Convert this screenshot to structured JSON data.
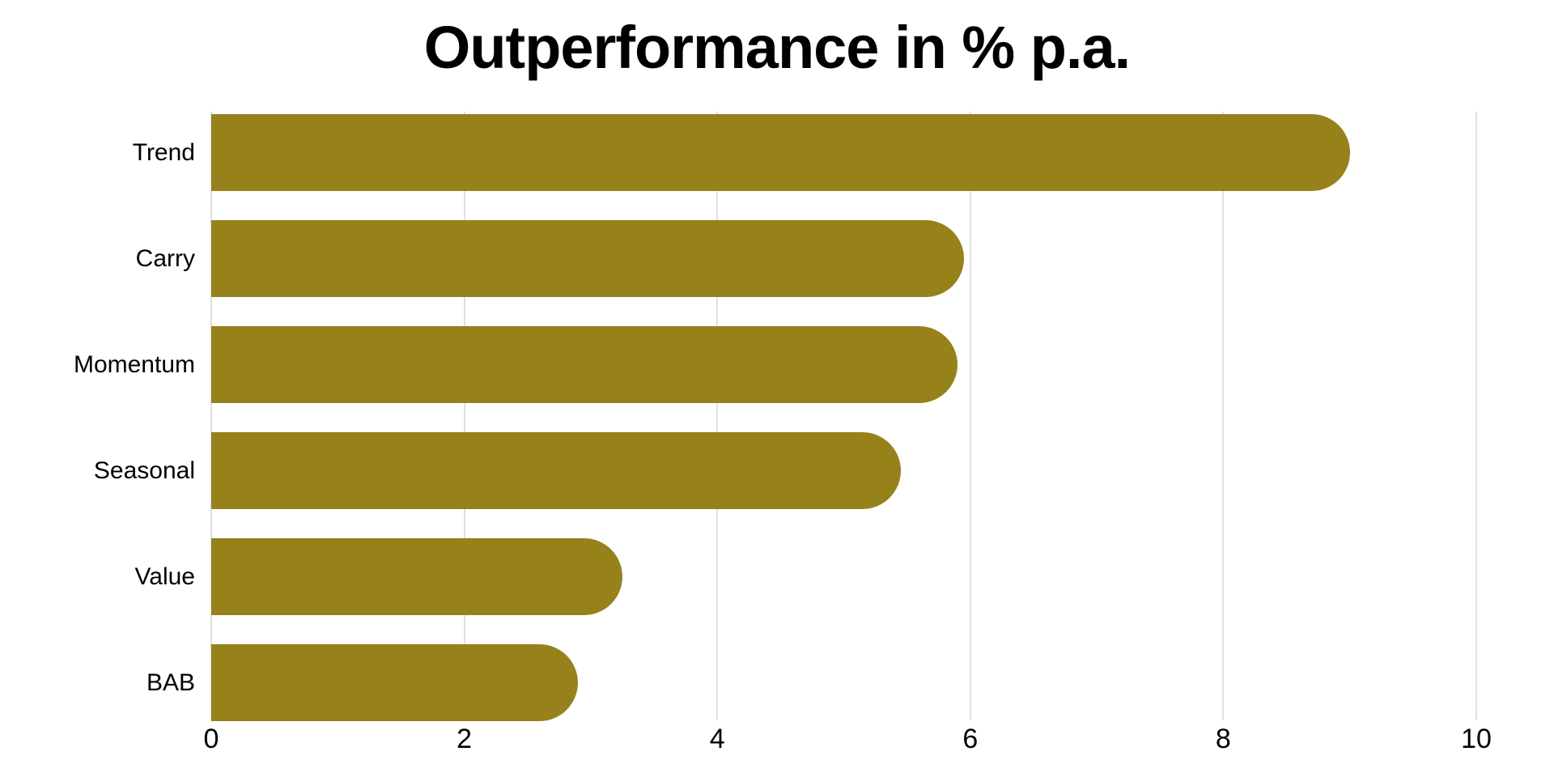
{
  "page": {
    "background": "#FFFFFF"
  },
  "chart_data": {
    "type": "bar",
    "orientation": "horizontal",
    "title": "Outperformance in % p.a.",
    "categories": [
      "Trend",
      "Carry",
      "Momentum",
      "Seasonal",
      "Value",
      "BAB"
    ],
    "values": [
      9.0,
      5.95,
      5.9,
      5.45,
      3.25,
      2.9
    ],
    "xlabel": "",
    "ylabel": "",
    "xlim": [
      0,
      10
    ],
    "xticks": [
      0,
      2,
      4,
      6,
      8,
      10
    ],
    "grid": true,
    "legend": false,
    "colors": {
      "bar": "#97811B",
      "gridline": "#E0E0E0",
      "text": "#000000"
    }
  }
}
